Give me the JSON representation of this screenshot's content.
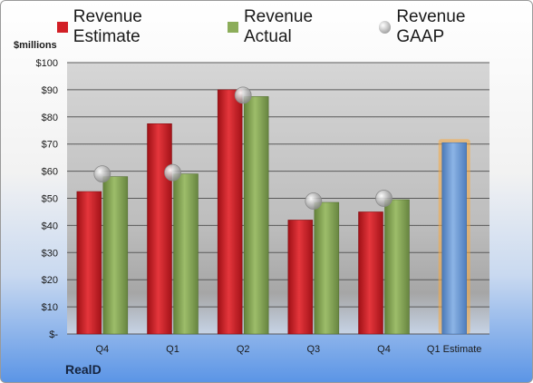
{
  "legend": {
    "estimate": "Revenue Estimate",
    "actual": "Revenue Actual",
    "gaap": "Revenue GAAP"
  },
  "unit_label": "$millions",
  "company": "RealD",
  "colors": {
    "estimate": "#d21f26",
    "actual": "#8cad5a",
    "forecast": "#6f9fdb",
    "forecast_glow": "#f7a940"
  },
  "chart_data": {
    "type": "bar",
    "categories": [
      "Q4",
      "Q1",
      "Q2",
      "Q3",
      "Q4",
      "Q1 Estimate"
    ],
    "ylim": [
      0,
      100
    ],
    "yticks": [
      "$-",
      "$10",
      "$20",
      "$30",
      "$40",
      "$50",
      "$60",
      "$70",
      "$80",
      "$90",
      "$100"
    ],
    "ylabel": "$millions",
    "grid": true,
    "legend_position": "top",
    "series": [
      {
        "name": "Revenue Estimate",
        "values": [
          52.5,
          77.5,
          90,
          42,
          45,
          70.5
        ]
      },
      {
        "name": "Revenue Actual",
        "values": [
          58,
          59,
          87.5,
          48.5,
          49.5,
          null
        ]
      },
      {
        "name": "Revenue GAAP",
        "values": [
          59,
          59.5,
          88,
          49,
          50,
          null
        ]
      }
    ]
  }
}
